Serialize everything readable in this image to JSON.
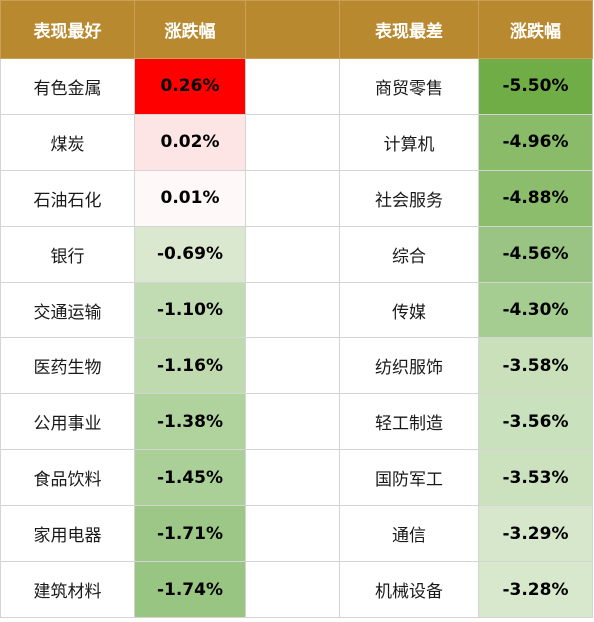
{
  "headers": {
    "best_label": "表现最好",
    "best_change": "涨跌幅",
    "worst_label": "表现最差",
    "worst_change": "涨跌幅"
  },
  "best": [
    {
      "name": "有色金属",
      "value": "0.26%",
      "color": "#ff0000"
    },
    {
      "name": "煤炭",
      "value": "0.02%",
      "color": "#fde5e5"
    },
    {
      "name": "石油石化",
      "value": "0.01%",
      "color": "#fff8f8"
    },
    {
      "name": "银行",
      "value": "-0.69%",
      "color": "#dbe8d0"
    },
    {
      "name": "交通运输",
      "value": "-1.10%",
      "color": "#c1dcb2"
    },
    {
      "name": "医药生物",
      "value": "-1.16%",
      "color": "#bfdaae"
    },
    {
      "name": "公用事业",
      "value": "-1.38%",
      "color": "#b0d39d"
    },
    {
      "name": "食品饮料",
      "value": "-1.45%",
      "color": "#abd097"
    },
    {
      "name": "家用电器",
      "value": "-1.71%",
      "color": "#9dc786"
    },
    {
      "name": "建筑材料",
      "value": "-1.74%",
      "color": "#99c582"
    }
  ],
  "worst": [
    {
      "name": "商贸零售",
      "value": "-5.50%",
      "color": "#70ad47"
    },
    {
      "name": "计算机",
      "value": "-4.96%",
      "color": "#89bb68"
    },
    {
      "name": "社会服务",
      "value": "-4.88%",
      "color": "#8cbd6c"
    },
    {
      "name": "综合",
      "value": "-4.56%",
      "color": "#9ac483"
    },
    {
      "name": "传媒",
      "value": "-4.30%",
      "color": "#a6cd91"
    },
    {
      "name": "纺织服饰",
      "value": "-3.58%",
      "color": "#c9e0bb"
    },
    {
      "name": "轻工制造",
      "value": "-3.56%",
      "color": "#cae1bd"
    },
    {
      "name": "国防军工",
      "value": "-3.53%",
      "color": "#cce2bf"
    },
    {
      "name": "通信",
      "value": "-3.29%",
      "color": "#d7e7cc"
    },
    {
      "name": "机械设备",
      "value": "-3.28%",
      "color": "#d8e8cd"
    }
  ]
}
